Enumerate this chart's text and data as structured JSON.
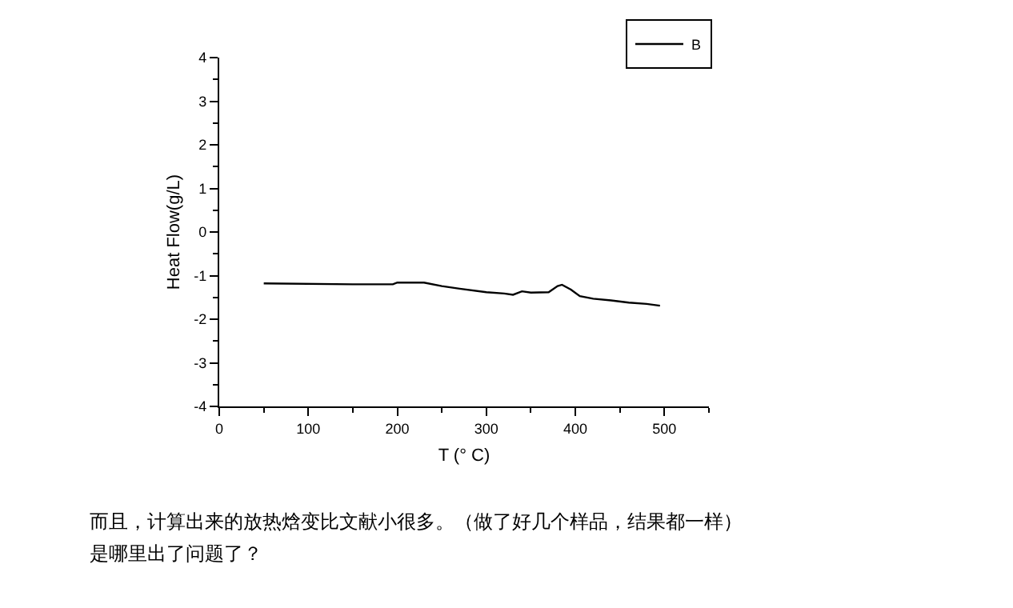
{
  "chart_data": {
    "type": "line",
    "xlabel": "T (° C)",
    "ylabel": "Heat Flow(g/L)",
    "x": [
      50,
      150,
      195,
      200,
      230,
      250,
      270,
      300,
      320,
      330,
      340,
      350,
      370,
      380,
      385,
      395,
      405,
      420,
      440,
      460,
      480,
      495
    ],
    "series": [
      {
        "name": "B",
        "color": "#000000",
        "values": [
          -1.18,
          -1.2,
          -1.2,
          -1.16,
          -1.16,
          -1.24,
          -1.3,
          -1.38,
          -1.41,
          -1.44,
          -1.36,
          -1.39,
          -1.38,
          -1.24,
          -1.21,
          -1.32,
          -1.47,
          -1.53,
          -1.57,
          -1.62,
          -1.65,
          -1.69
        ]
      }
    ],
    "xlim": [
      0,
      550
    ],
    "xticks": [
      0,
      100,
      200,
      300,
      400,
      500
    ],
    "ylim": [
      -4,
      4
    ],
    "yticks": [
      -4,
      -3,
      -2,
      -1,
      0,
      1,
      2,
      3,
      4
    ],
    "grid": false,
    "legend": "top right",
    "marker": "none",
    "line_style": "solid",
    "annotations": [
      "而且，计算出来的放热焓变比文献小很多。（做了好几个样品，结果都一样）",
      "是哪里出了问题了？"
    ]
  }
}
